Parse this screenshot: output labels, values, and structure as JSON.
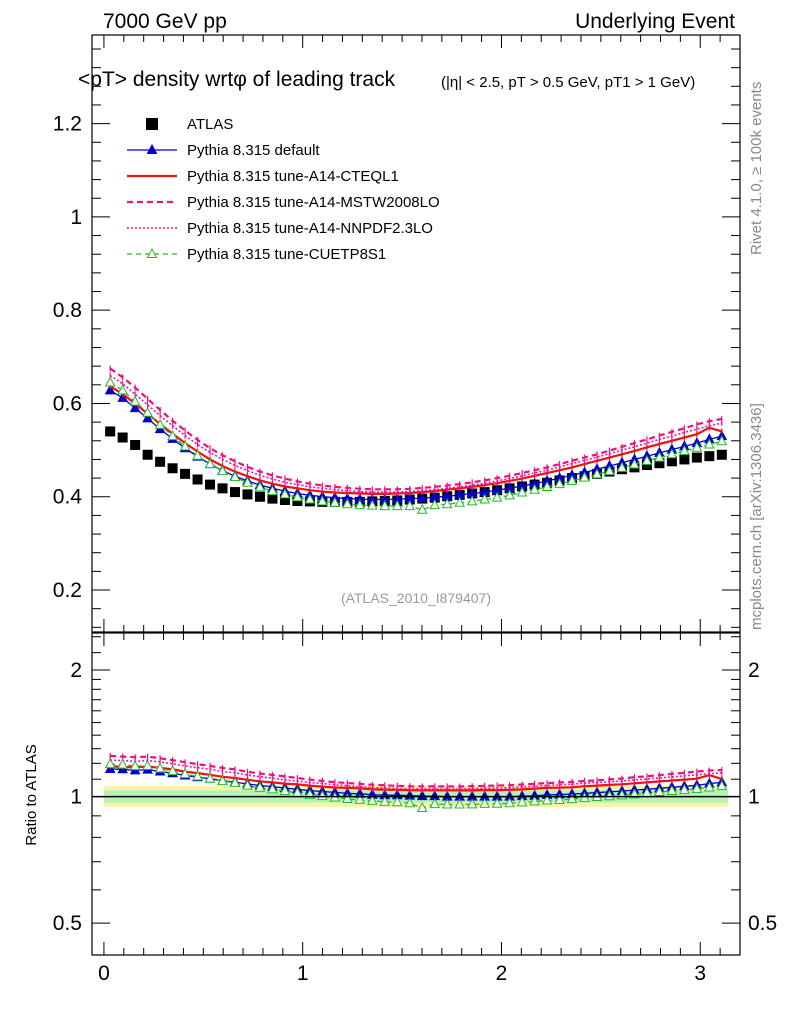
{
  "header": {
    "left": "7000 GeV pp",
    "right": "Underlying Event"
  },
  "side": {
    "rivet": "Rivet 4.1.0, ≥ 100k events",
    "mcplots": "mcplots.cern.ch [arXiv:1306.3436]"
  },
  "chart_data": {
    "type": "line",
    "title_main": "<pT> density wrtφ of leading track",
    "title_cuts": "(|η| < 2.5, pT > 0.5 GeV, pT1 > 1 GeV)",
    "analysis_id": "(ATLAS_2010_I879407)",
    "ratio_ylabel": "Ratio to ATLAS",
    "xlim": [
      -0.06,
      3.2
    ],
    "ylim": [
      0.11,
      1.39
    ],
    "ratio_ylim": [
      0.42,
      2.45
    ],
    "x_ticks": [
      "0",
      "1",
      "2",
      "3"
    ],
    "y_ticks": [
      "0.2",
      "0.4",
      "0.6",
      "0.8",
      "1",
      "1.2"
    ],
    "ratio_ticks": [
      "0.5",
      "1",
      "2"
    ],
    "legend": [
      "ATLAS",
      "Pythia 8.315 default",
      "Pythia 8.315 tune-A14-CTEQL1",
      "Pythia 8.315 tune-A14-MSTW2008LO",
      "Pythia 8.315 tune-A14-NNPDF2.3LO",
      "Pythia 8.315 tune-CUETP8S1"
    ],
    "x_range": {
      "start": 0.0314,
      "step": 0.0628,
      "count": 50
    },
    "data_points": [
      0.54,
      0.527,
      0.511,
      0.49,
      0.475,
      0.461,
      0.449,
      0.437,
      0.426,
      0.418,
      0.41,
      0.405,
      0.4,
      0.396,
      0.393,
      0.391,
      0.39,
      0.389,
      0.389,
      0.389,
      0.389,
      0.39,
      0.391,
      0.392,
      0.394,
      0.396,
      0.398,
      0.401,
      0.404,
      0.407,
      0.41,
      0.414,
      0.418,
      0.422,
      0.426,
      0.43,
      0.435,
      0.44,
      0.444,
      0.449,
      0.454,
      0.459,
      0.463,
      0.468,
      0.472,
      0.476,
      0.48,
      0.484,
      0.487,
      0.49
    ],
    "series": [
      {
        "name": "Pythia 8.315 default",
        "color": "#0000cc",
        "dash": "",
        "width": 1.3,
        "marker": "triangle",
        "values": [
          0.628,
          0.612,
          0.59,
          0.568,
          0.545,
          0.524,
          0.504,
          0.486,
          0.47,
          0.456,
          0.444,
          0.434,
          0.425,
          0.418,
          0.412,
          0.407,
          0.403,
          0.4,
          0.398,
          0.396,
          0.395,
          0.394,
          0.394,
          0.395,
          0.396,
          0.397,
          0.399,
          0.401,
          0.404,
          0.407,
          0.41,
          0.414,
          0.418,
          0.423,
          0.428,
          0.434,
          0.44,
          0.446,
          0.452,
          0.459,
          0.466,
          0.473,
          0.48,
          0.487,
          0.494,
          0.501,
          0.508,
          0.515,
          0.523,
          0.53
        ]
      },
      {
        "name": "Pythia 8.315 tune-A14-CTEQL1",
        "color": "#ee1111",
        "dash": "",
        "width": 2.2,
        "marker": "",
        "values": [
          0.637,
          0.62,
          0.6,
          0.578,
          0.556,
          0.535,
          0.515,
          0.497,
          0.48,
          0.466,
          0.454,
          0.444,
          0.435,
          0.428,
          0.422,
          0.418,
          0.414,
          0.411,
          0.409,
          0.408,
          0.407,
          0.406,
          0.406,
          0.407,
          0.408,
          0.41,
          0.412,
          0.415,
          0.418,
          0.421,
          0.425,
          0.429,
          0.434,
          0.439,
          0.445,
          0.451,
          0.457,
          0.463,
          0.47,
          0.477,
          0.484,
          0.491,
          0.498,
          0.506,
          0.513,
          0.52,
          0.527,
          0.534,
          0.548,
          0.54
        ]
      },
      {
        "name": "Pythia 8.315 tune-A14-MSTW2008LO",
        "color": "#ee1177",
        "dash": "6,4",
        "width": 2.2,
        "marker": "",
        "values": [
          0.675,
          0.656,
          0.634,
          0.61,
          0.586,
          0.563,
          0.542,
          0.522,
          0.504,
          0.489,
          0.476,
          0.464,
          0.454,
          0.446,
          0.439,
          0.433,
          0.428,
          0.424,
          0.421,
          0.419,
          0.417,
          0.416,
          0.416,
          0.416,
          0.417,
          0.419,
          0.421,
          0.424,
          0.427,
          0.431,
          0.435,
          0.44,
          0.445,
          0.451,
          0.457,
          0.463,
          0.47,
          0.477,
          0.484,
          0.491,
          0.499,
          0.507,
          0.515,
          0.523,
          0.531,
          0.539,
          0.547,
          0.555,
          0.562,
          0.567
        ]
      },
      {
        "name": "Pythia 8.315 tune-A14-NNPDF2.3LO",
        "color": "#ee11aa",
        "dash": "2,2",
        "width": 1.6,
        "marker": "",
        "values": [
          0.66,
          0.642,
          0.62,
          0.597,
          0.574,
          0.552,
          0.531,
          0.512,
          0.495,
          0.48,
          0.467,
          0.456,
          0.446,
          0.438,
          0.431,
          0.426,
          0.421,
          0.418,
          0.415,
          0.413,
          0.411,
          0.41,
          0.41,
          0.41,
          0.411,
          0.413,
          0.415,
          0.418,
          0.421,
          0.425,
          0.429,
          0.434,
          0.439,
          0.445,
          0.451,
          0.457,
          0.464,
          0.471,
          0.478,
          0.485,
          0.492,
          0.5,
          0.507,
          0.515,
          0.523,
          0.53,
          0.538,
          0.545,
          0.552,
          0.558
        ]
      },
      {
        "name": "Pythia 8.315 tune-CUETP8S1",
        "color": "#22bb22",
        "dash": "5,4",
        "width": 1.3,
        "marker": "triangle-open",
        "values": [
          0.645,
          0.628,
          0.604,
          0.58,
          0.554,
          0.53,
          0.508,
          0.488,
          0.47,
          0.455,
          0.442,
          0.43,
          0.42,
          0.412,
          0.405,
          0.399,
          0.394,
          0.39,
          0.387,
          0.384,
          0.382,
          0.381,
          0.38,
          0.38,
          0.38,
          0.372,
          0.382,
          0.384,
          0.387,
          0.39,
          0.394,
          0.398,
          0.403,
          0.409,
          0.415,
          0.421,
          0.427,
          0.434,
          0.441,
          0.448,
          0.455,
          0.462,
          0.469,
          0.477,
          0.484,
          0.491,
          0.498,
          0.505,
          0.512,
          0.519
        ]
      }
    ]
  }
}
